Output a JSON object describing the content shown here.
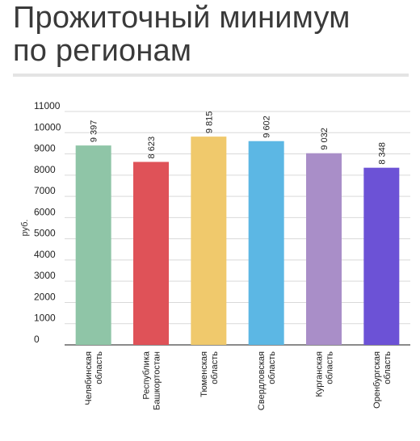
{
  "title": "Прожиточный минимум\nпо регионам",
  "chart_data": {
    "type": "bar",
    "ylabel": "руб.",
    "ylim": [
      0,
      11000
    ],
    "yticks": [
      0,
      1000,
      2000,
      3000,
      4000,
      5000,
      6000,
      7000,
      8000,
      9000,
      10000,
      11000
    ],
    "grid": true,
    "categories": [
      [
        "Челябинская",
        "область"
      ],
      [
        "Республика",
        "Башкортостан"
      ],
      [
        "Тюменская",
        "область"
      ],
      [
        "Свердловская",
        "область"
      ],
      [
        "Курганская",
        "область"
      ],
      [
        "Оренбургская",
        "область"
      ]
    ],
    "values": [
      9397,
      8623,
      9815,
      9602,
      9032,
      8348
    ],
    "data_labels": [
      "9 397",
      "8 623",
      "9 815",
      "9 602",
      "9 032",
      "8 348"
    ],
    "colors": [
      "#8fc5a7",
      "#df5258",
      "#f0c96c",
      "#5cb7e4",
      "#a98ec8",
      "#6c52d6"
    ]
  }
}
